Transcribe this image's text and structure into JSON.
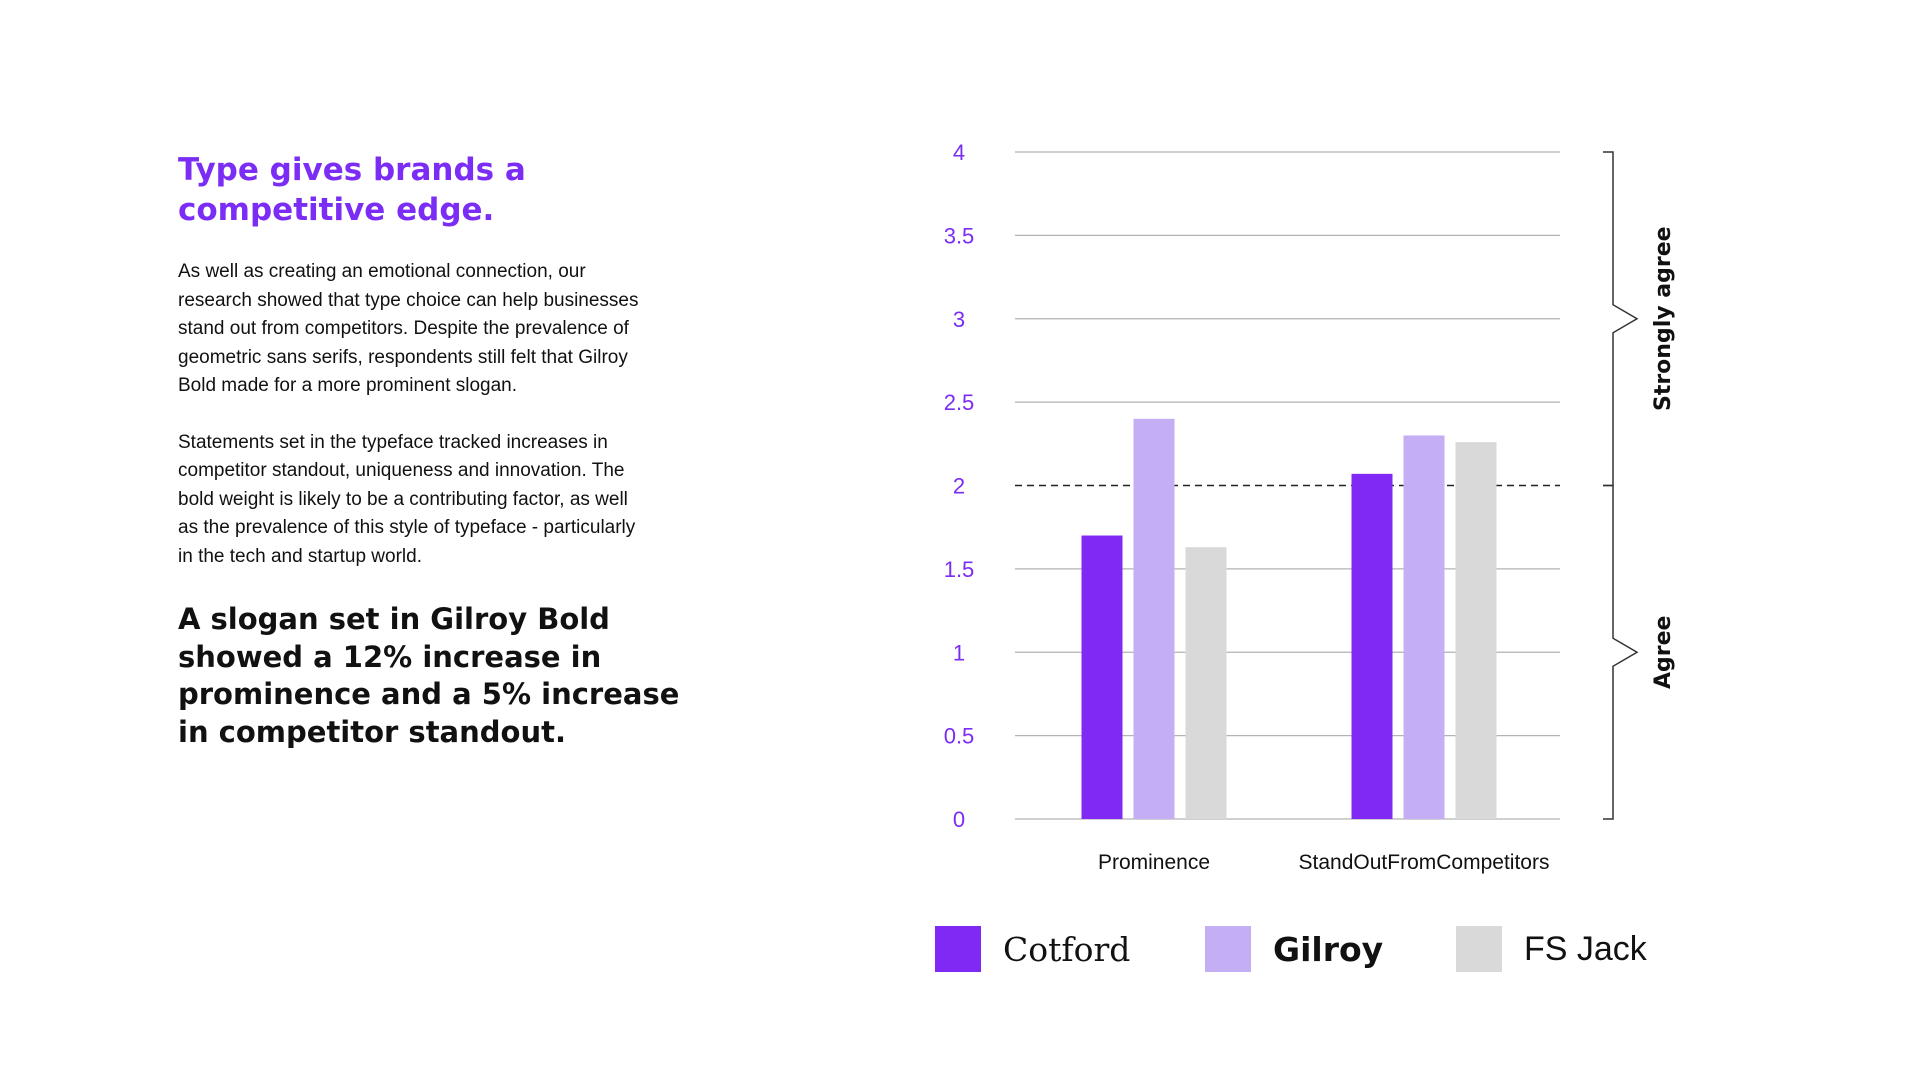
{
  "article": {
    "headline": "Type gives brands a\ncompetitive edge.",
    "paragraph1": "As well as creating an emotional connection, our\nresearch showed that type choice can help businesses\nstand out from competitors. Despite the prevalence of\ngeometric sans serifs, respondents still felt that Gilroy\nBold made for a more prominent slogan.",
    "paragraph2": "Statements set in the typeface tracked increases in\ncompetitor standout, uniqueness and innovation. The\nbold weight is likely to be a contributing factor, as well\nas the prevalence of this style of typeface - particularly\nin the tech and startup world.",
    "callout": "A slogan set in Gilroy Bold\nshowed a 12% increase in\nprominence and a 5% increase\nin competitor standout."
  },
  "colors": {
    "accent": "#7b2cf5",
    "cotford": "#8029f5",
    "gilroy": "#c4aef4",
    "fs_jack": "#d9d9d9"
  },
  "legend": {
    "cotford": "Cotford",
    "gilroy": "Gilroy",
    "fs_jack": "FS Jack"
  },
  "chart_data": {
    "type": "bar",
    "categories": [
      "Prominence",
      "StandOutFromCompetitors"
    ],
    "series": [
      {
        "name": "Cotford",
        "values": [
          1.7,
          2.07
        ]
      },
      {
        "name": "Gilroy",
        "values": [
          2.4,
          2.3
        ]
      },
      {
        "name": "FS Jack",
        "values": [
          1.63,
          2.26
        ]
      }
    ],
    "ylim": [
      0,
      4
    ],
    "yticks": [
      "0",
      "0.5",
      "1",
      "1.5",
      "2",
      "2.5",
      "3",
      "3.5",
      "4"
    ],
    "reference_line": 2,
    "brackets": [
      {
        "label": "Strongly agree",
        "from": 2,
        "to": 4
      },
      {
        "label": "Agree",
        "from": 0,
        "to": 2
      }
    ],
    "grid": true,
    "legend_position": "bottom"
  }
}
